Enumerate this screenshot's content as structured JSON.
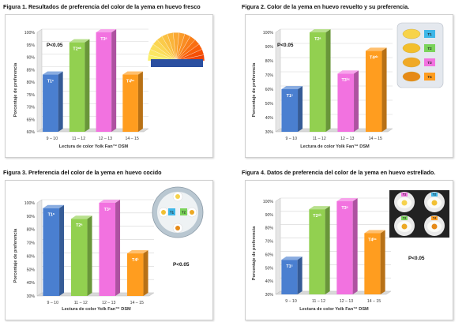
{
  "figures": [
    {
      "title": "Figura 1. Resultados de preferencia del color de la yema en huevo fresco"
    },
    {
      "title": "Figura 2. Color de la yema en huevo revuelto y su preferencia."
    },
    {
      "title": "Figura 3. Preferencia del color de la yema en huevo cocido"
    },
    {
      "title": "Figura 4. Datos de preferencia del color de la yema en huevo estrellado."
    }
  ],
  "colors": {
    "T1": "#4a7fd0",
    "T2": "#92d050",
    "T3": "#f272e0",
    "T4": "#ff9d1f"
  },
  "chart_data": [
    {
      "type": "bar",
      "title": "Figura 1. Resultados de preferencia del color de la yema en huevo fresco",
      "ylabel": "Porcentaje de preferencia",
      "xlabel": "Lectura de color Yolk Fan™ DSM",
      "categories": [
        "9 – 10",
        "11 – 12",
        "12 – 13",
        "14 – 15"
      ],
      "values": [
        83,
        96,
        100,
        83
      ],
      "bar_labels": [
        "T1ᶜ",
        "T2ᵃᵇ",
        "T3ᵃ",
        "T4ᵇᶜ"
      ],
      "yticks": [
        "60%",
        "65%",
        "70%",
        "75%",
        "80%",
        "85%",
        "90%",
        "95%",
        "100%"
      ],
      "ylim": [
        60,
        100
      ],
      "annotation": "P<0.05",
      "inset": "yolk-fan-image"
    },
    {
      "type": "bar",
      "title": "Figura 2. Color de la yema en huevo revuelto y su preferencia.",
      "ylabel": "Porcentaje de preferencia",
      "xlabel": "Lectura de color Yolk Fan™ DSM",
      "categories": [
        "9 – 10",
        "11 – 12",
        "12 – 13",
        "14 – 15"
      ],
      "values": [
        60,
        100,
        71,
        87
      ],
      "bar_labels": [
        "T1ᶜ",
        "T2ᵃ",
        "T3ᵇᶜ",
        "T4ᵃᵇ"
      ],
      "yticks": [
        "30%",
        "40%",
        "50%",
        "60%",
        "70%",
        "80%",
        "90%",
        "100%"
      ],
      "ylim": [
        30,
        100
      ],
      "annotation": "P<0.05",
      "inset": "scrambled-egg-samples-image",
      "inset_labels": [
        "T1",
        "T2",
        "T3",
        "T4"
      ]
    },
    {
      "type": "bar",
      "title": "Figura 3. Preferencia del color de la yema en huevo cocido",
      "ylabel": "Porcentaje de preferencia",
      "xlabel": "Lectura de color Yolk Fan™ DSM",
      "categories": [
        "9 – 10",
        "11 – 12",
        "12 – 13",
        "14 – 15"
      ],
      "values": [
        96,
        88,
        100,
        62
      ],
      "bar_labels": [
        "T1ᵃ",
        "T2ᵃ",
        "T3ᵃ",
        "T4ᵇ"
      ],
      "yticks": [
        "30%",
        "40%",
        "50%",
        "60%",
        "70%",
        "80%",
        "90%",
        "100%"
      ],
      "ylim": [
        30,
        100
      ],
      "annotation": "P<0.05",
      "inset": "boiled-egg-plate-image",
      "inset_labels": [
        "T1",
        "T2",
        "T3",
        "T4"
      ]
    },
    {
      "type": "bar",
      "title": "Figura 4. Datos de preferencia del color de la yema en huevo estrellado.",
      "ylabel": "Porcentaje de preferencia",
      "xlabel": "Lectura de color Yolk Fan™ DSM",
      "categories": [
        "9 – 10",
        "11 – 12",
        "12 – 13",
        "14 – 15"
      ],
      "values": [
        56,
        94,
        100,
        76
      ],
      "bar_labels": [
        "T1ᶜ",
        "T2ᵃᵇ",
        "T3ᵃ",
        "T4ᵇᶜ"
      ],
      "yticks": [
        "30%",
        "40%",
        "50%",
        "60%",
        "70%",
        "80%",
        "90%",
        "100%"
      ],
      "ylim": [
        30,
        100
      ],
      "annotation": "P<0.05",
      "inset": "fried-egg-plates-image",
      "inset_labels": [
        "T1",
        "T2",
        "T3",
        "T4"
      ]
    }
  ]
}
